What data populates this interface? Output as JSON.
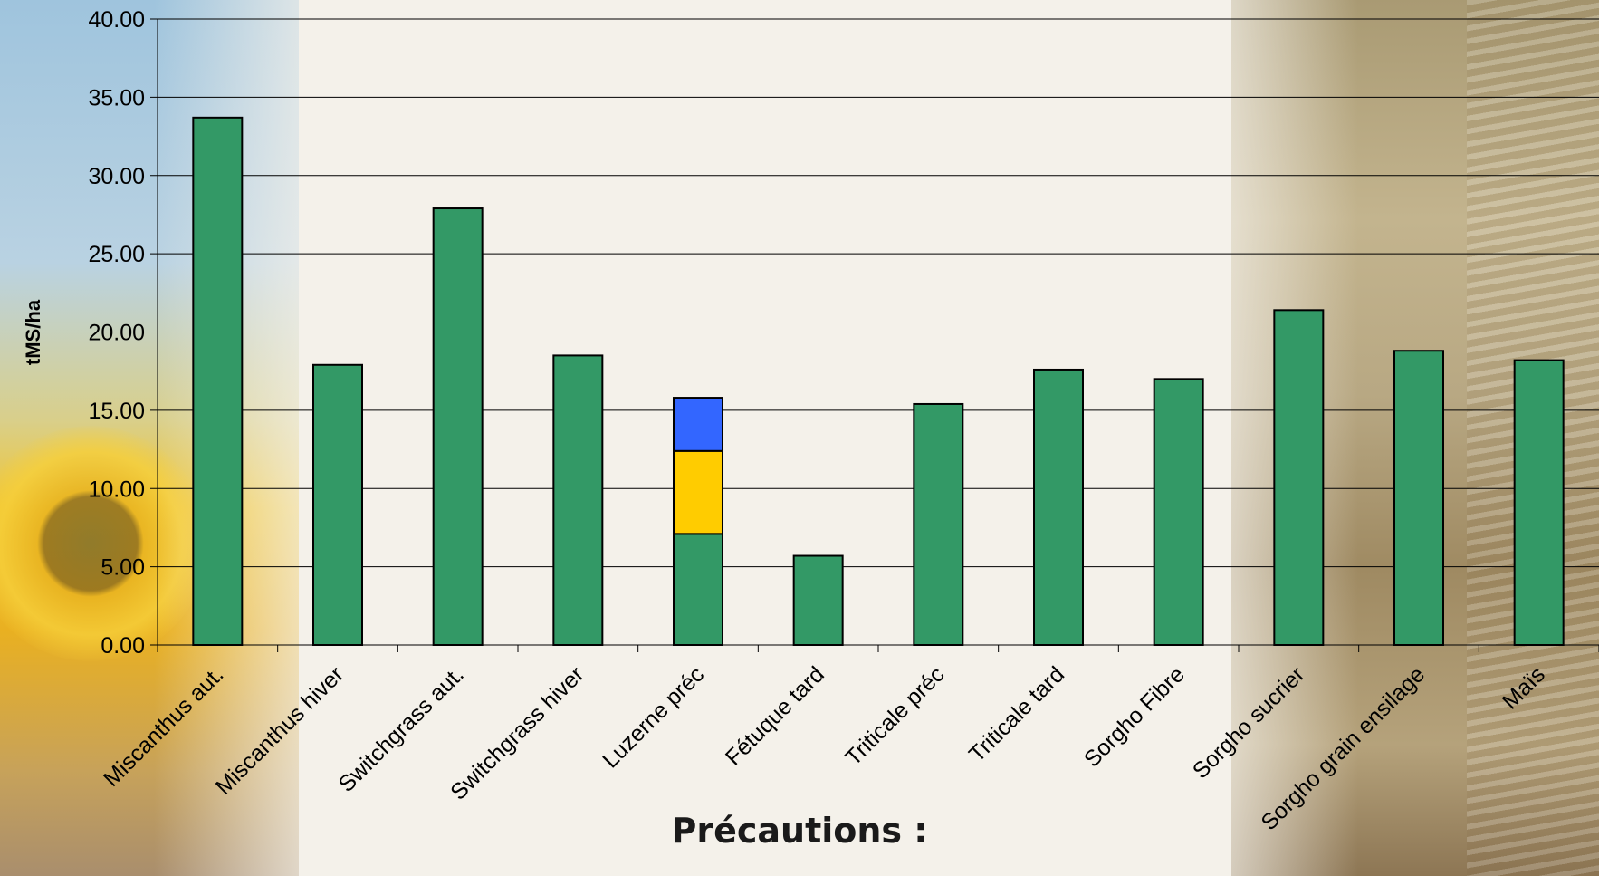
{
  "chart_data": {
    "type": "bar",
    "stacked": true,
    "categories": [
      "Miscanthus aut.",
      "Miscanthus hiver",
      "Switchgrass aut.",
      "Switchgrass hiver",
      "Luzerne préc",
      "Fétuque tard",
      "Triticale préc",
      "Triticale tard",
      "Sorgho Fibre",
      "Sorgho sucrier",
      "Sorgho grain ensilage",
      "Maïs"
    ],
    "series": [
      {
        "color": "#339966",
        "values": [
          33.7,
          17.9,
          27.9,
          18.5,
          7.1,
          5.7,
          15.4,
          17.6,
          17.0,
          21.4,
          18.8,
          18.2
        ]
      },
      {
        "color": "#ffcc00",
        "values": [
          0,
          0,
          0,
          0,
          5.3,
          0,
          0,
          0,
          0,
          0,
          0,
          0
        ]
      },
      {
        "color": "#3366ff",
        "values": [
          0,
          0,
          0,
          0,
          3.4,
          0,
          0,
          0,
          0,
          0,
          0,
          0
        ]
      }
    ],
    "ylabel": "tMS/ha",
    "xlabel": "",
    "ylim": [
      0,
      40
    ],
    "yticks": [
      "0.00",
      "5.00",
      "10.00",
      "15.00",
      "20.00",
      "25.00",
      "30.00",
      "35.00",
      "40.00"
    ],
    "grid": true,
    "legend": "none"
  },
  "overlay": {
    "title": "Précautions :"
  }
}
